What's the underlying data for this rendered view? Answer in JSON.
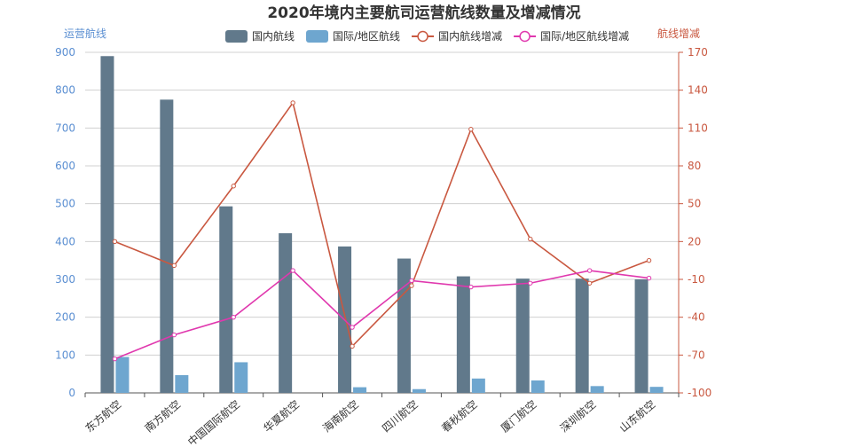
{
  "chart_data": {
    "type": "bar",
    "title": "2020年境内主要航司运营航线数量及增减情况",
    "categories": [
      "东方航空",
      "南方航空",
      "中国国际航空",
      "华夏航空",
      "海南航空",
      "四川航空",
      "春秋航空",
      "厦门航空",
      "深圳航空",
      "山东航空"
    ],
    "series": [
      {
        "name": "国内航线",
        "type": "bar",
        "axis": "left",
        "color": "#61798b",
        "values": [
          890,
          775,
          493,
          422,
          387,
          355,
          308,
          302,
          302,
          300
        ]
      },
      {
        "name": "国际/地区航线",
        "type": "bar",
        "axis": "left",
        "color": "#6ea6cf",
        "values": [
          95,
          47,
          81,
          0,
          15,
          10,
          38,
          33,
          18,
          16
        ]
      },
      {
        "name": "国内航线增减",
        "type": "line",
        "axis": "right",
        "color": "#c95840",
        "values": [
          20,
          1,
          64,
          130,
          -63,
          -15,
          109,
          22,
          -13,
          5
        ]
      },
      {
        "name": "国际/地区航线增减",
        "type": "line",
        "axis": "right",
        "color": "#e038ae",
        "values": [
          -73,
          -54,
          -40,
          -3,
          -48,
          -11,
          -16,
          -13,
          -3,
          -9
        ]
      }
    ],
    "y_left": {
      "label": "运营航线",
      "min": 0,
      "max": 900,
      "ticks": [
        0,
        100,
        200,
        300,
        400,
        500,
        600,
        700,
        800,
        900
      ],
      "color": "#5b8fd2"
    },
    "y_right": {
      "label": "航线增减",
      "min": -100,
      "max": 170,
      "ticks": [
        -100,
        -70,
        -40,
        -10,
        20,
        50,
        80,
        110,
        140,
        170
      ],
      "color": "#c95840"
    },
    "grid": true,
    "legend_position": "top-center"
  }
}
